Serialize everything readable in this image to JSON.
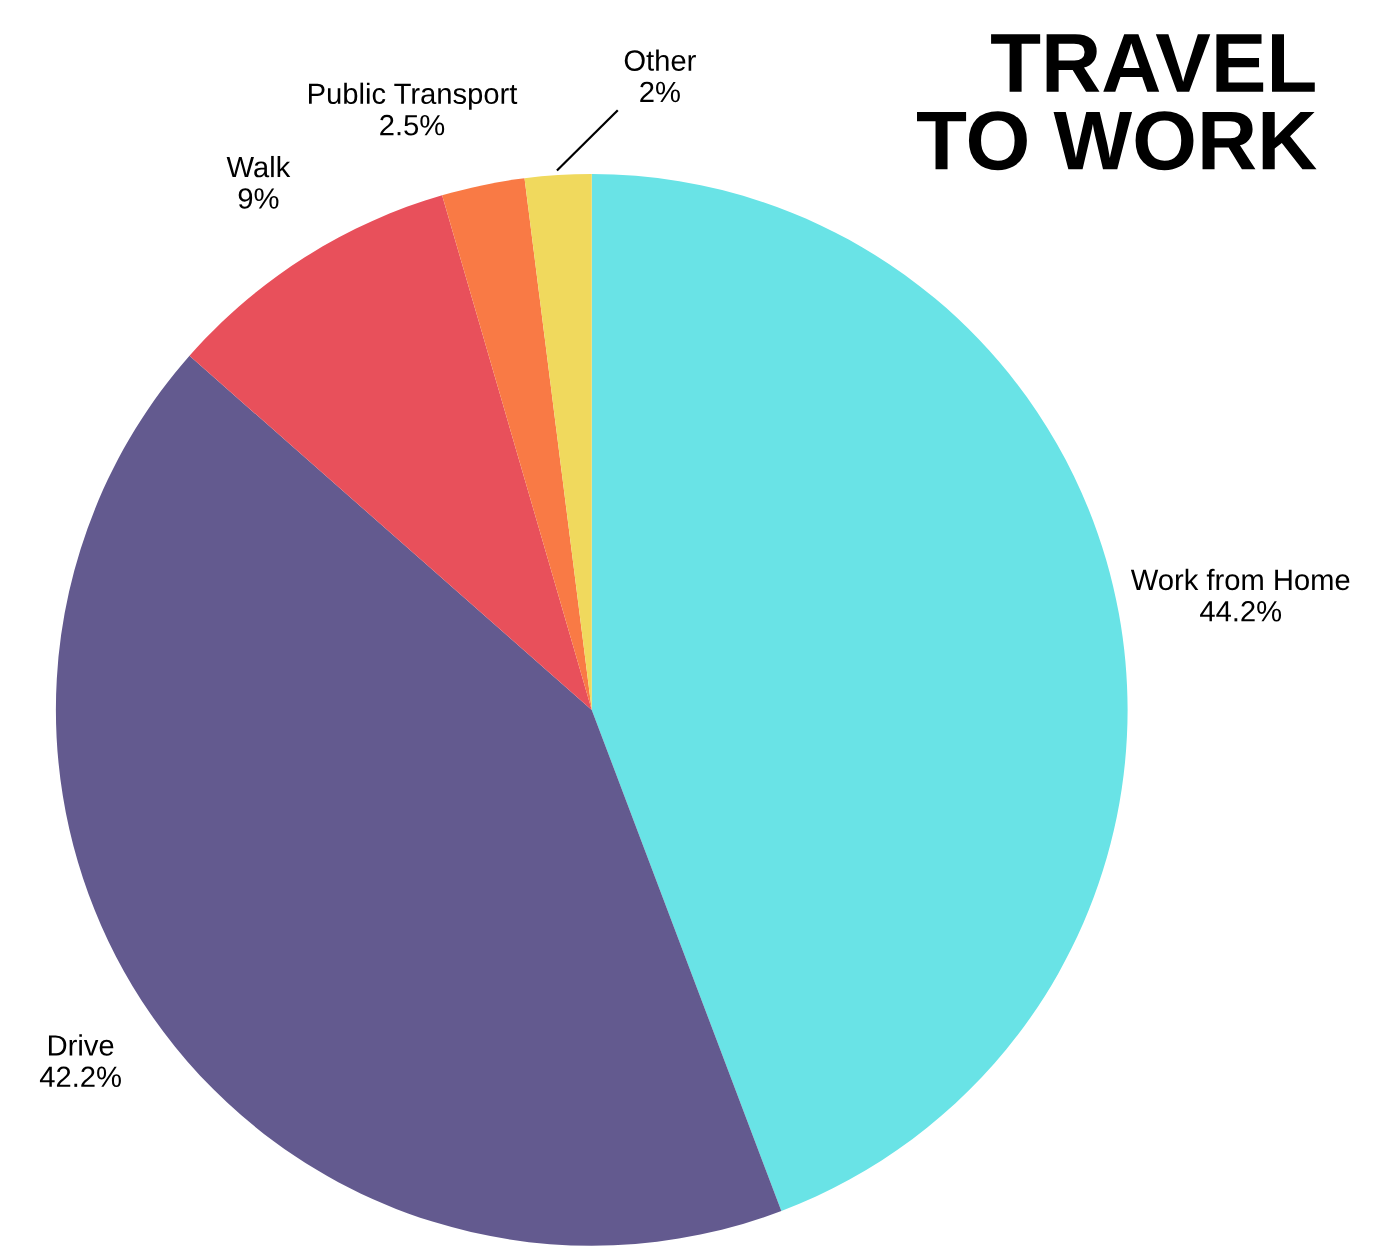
{
  "chart_data": {
    "type": "pie",
    "title": "TRAVEL\nTO WORK",
    "categories": [
      "Work from Home",
      "Drive",
      "Walk",
      "Public Transport",
      "Other"
    ],
    "values": [
      44.2,
      42.2,
      9,
      2.5,
      2
    ],
    "value_labels": [
      "44.2%",
      "42.2%",
      "9%",
      "2.5%",
      "2%"
    ],
    "colors": [
      "#69e3e6",
      "#635a8f",
      "#e8505b",
      "#f97a45",
      "#f0d95d"
    ],
    "legend": false
  }
}
